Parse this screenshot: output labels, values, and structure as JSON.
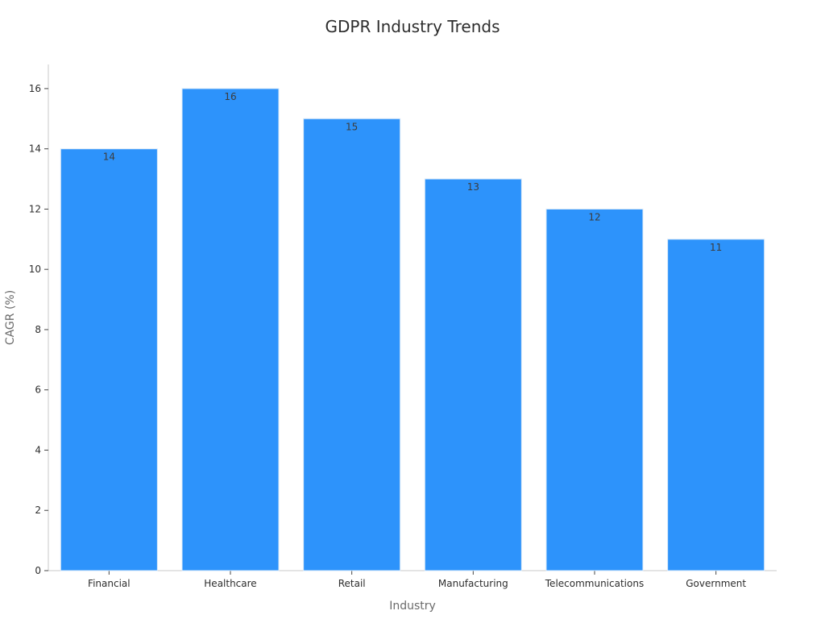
{
  "chart_data": {
    "type": "bar",
    "title": "GDPR Industry Trends",
    "xlabel": "Industry",
    "ylabel": "CAGR (%)",
    "categories": [
      "Financial",
      "Healthcare",
      "Retail",
      "Manufacturing",
      "Telecommunications",
      "Government"
    ],
    "values": [
      14,
      16,
      15,
      13,
      12,
      11
    ],
    "value_labels": [
      "14",
      "16",
      "15",
      "13",
      "12",
      "11"
    ],
    "ylim": [
      0,
      16.8
    ],
    "yticks": [
      0,
      2,
      4,
      6,
      8,
      10,
      12,
      14,
      16
    ],
    "ytick_labels": [
      "0",
      "2",
      "4",
      "6",
      "8",
      "10",
      "12",
      "14",
      "16"
    ],
    "grid": false,
    "legend": "none",
    "bar_color": "#2d93fb",
    "bar_edge_color": "#d8e8f8",
    "axis_color": "#c8c8c8",
    "title_color": "#2d2d2d",
    "axis_title_color": "#6b6b6b",
    "tick_label_color": "#2d2d2d",
    "value_label_color": "#3c3c3c"
  }
}
